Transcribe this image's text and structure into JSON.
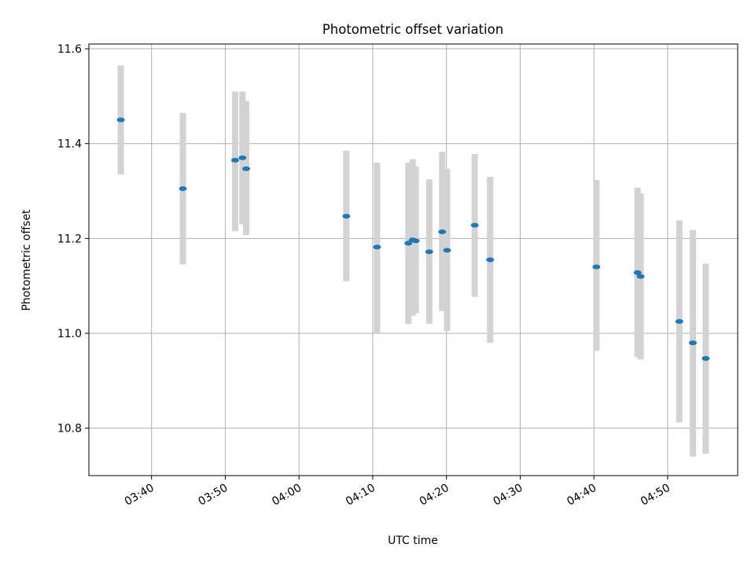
{
  "chart_data": {
    "type": "scatter",
    "title": "Photometric offset variation",
    "xlabel": "UTC time",
    "ylabel": "Photometric offset",
    "x_unit": "UTC time (HH:MM)",
    "xlim": [
      "03:31:30",
      "04:59:30"
    ],
    "ylim": [
      10.7,
      11.61
    ],
    "x_ticks": [
      "03:40",
      "03:50",
      "04:00",
      "04:10",
      "04:20",
      "04:30",
      "04:40",
      "04:50"
    ],
    "y_ticks": [
      10.8,
      11.0,
      11.2,
      11.4,
      11.6
    ],
    "grid": true,
    "colors": {
      "point": "#1f77b4",
      "errorbar": "#d3d3d3",
      "grid": "#b0b0b0"
    },
    "series": [
      {
        "points": [
          {
            "x": "03:35:50",
            "y": 11.45,
            "ylow": 11.335,
            "yhigh": 11.565
          },
          {
            "x": "03:44:15",
            "y": 11.305,
            "ylow": 11.145,
            "yhigh": 11.465
          },
          {
            "x": "03:51:20",
            "y": 11.365,
            "ylow": 11.215,
            "yhigh": 11.51
          },
          {
            "x": "03:52:20",
            "y": 11.37,
            "ylow": 11.23,
            "yhigh": 11.51
          },
          {
            "x": "03:52:50",
            "y": 11.347,
            "ylow": 11.207,
            "yhigh": 11.49
          },
          {
            "x": "04:06:25",
            "y": 11.247,
            "ylow": 11.11,
            "yhigh": 11.385
          },
          {
            "x": "04:10:35",
            "y": 11.182,
            "ylow": 11.0,
            "yhigh": 11.36
          },
          {
            "x": "04:14:50",
            "y": 11.19,
            "ylow": 11.02,
            "yhigh": 11.36
          },
          {
            "x": "04:15:25",
            "y": 11.197,
            "ylow": 11.037,
            "yhigh": 11.367
          },
          {
            "x": "04:15:50",
            "y": 11.195,
            "ylow": 11.042,
            "yhigh": 11.352
          },
          {
            "x": "04:17:40",
            "y": 11.172,
            "ylow": 11.02,
            "yhigh": 11.325
          },
          {
            "x": "04:19:25",
            "y": 11.214,
            "ylow": 11.047,
            "yhigh": 11.383
          },
          {
            "x": "04:20:05",
            "y": 11.175,
            "ylow": 11.005,
            "yhigh": 11.347
          },
          {
            "x": "04:23:50",
            "y": 11.228,
            "ylow": 11.077,
            "yhigh": 11.378
          },
          {
            "x": "04:25:55",
            "y": 11.155,
            "ylow": 10.98,
            "yhigh": 11.33
          },
          {
            "x": "04:40:20",
            "y": 11.14,
            "ylow": 10.963,
            "yhigh": 11.323
          },
          {
            "x": "04:45:55",
            "y": 11.128,
            "ylow": 10.95,
            "yhigh": 11.307
          },
          {
            "x": "04:46:20",
            "y": 11.12,
            "ylow": 10.945,
            "yhigh": 11.295
          },
          {
            "x": "04:51:35",
            "y": 11.025,
            "ylow": 10.812,
            "yhigh": 11.238
          },
          {
            "x": "04:53:25",
            "y": 10.98,
            "ylow": 10.74,
            "yhigh": 11.218
          },
          {
            "x": "04:55:10",
            "y": 10.947,
            "ylow": 10.746,
            "yhigh": 11.147
          }
        ]
      }
    ]
  }
}
